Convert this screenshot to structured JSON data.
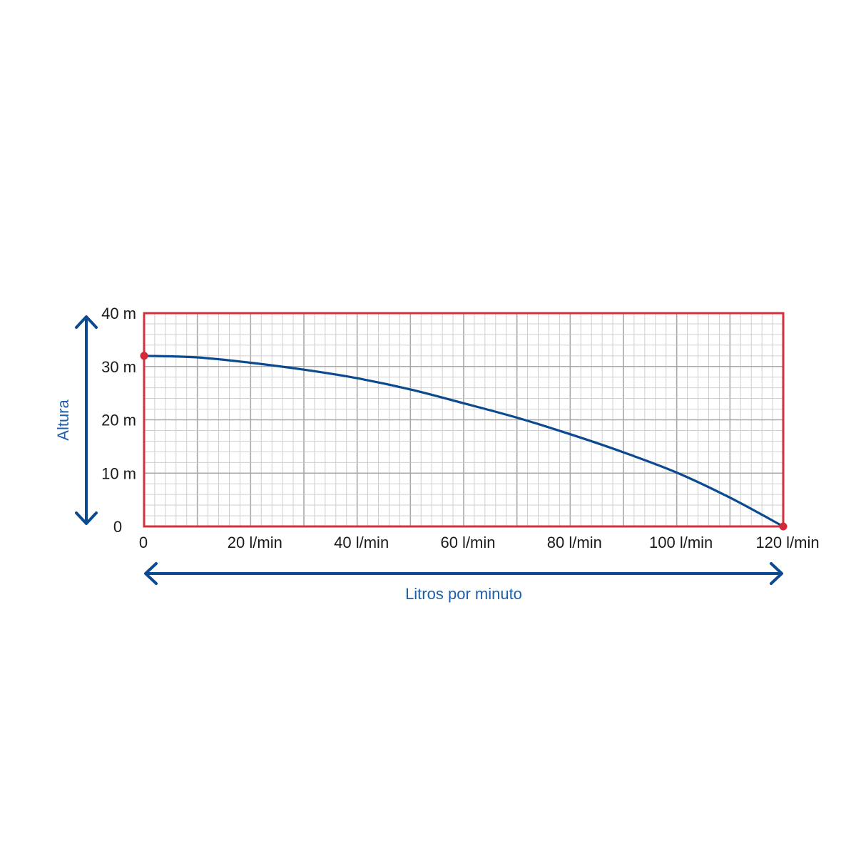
{
  "chart_data": {
    "type": "line",
    "x": [
      0,
      10,
      20,
      30,
      40,
      50,
      60,
      70,
      80,
      90,
      100,
      110,
      120
    ],
    "series": [
      {
        "values": [
          32,
          31.7,
          30.7,
          29.4,
          27.8,
          25.7,
          23.1,
          20.4,
          17.3,
          13.9,
          10.1,
          5.4,
          0
        ]
      }
    ],
    "endpoints": [
      [
        0,
        32
      ],
      [
        120,
        0
      ]
    ],
    "xticks": [
      "0",
      "20 l/min",
      "40 l/min",
      "60 l/min",
      "80 l/min",
      "100 l/min",
      "120 l/min"
    ],
    "xtick_values": [
      0,
      20,
      40,
      60,
      80,
      100,
      120
    ],
    "yticks": [
      "0",
      "10 m",
      "20 m",
      "30 m",
      "40 m"
    ],
    "ytick_values": [
      0,
      10,
      20,
      30,
      40
    ],
    "xlabel": "Litros por minuto",
    "ylabel": "Altura",
    "xlim": [
      0,
      120
    ],
    "ylim": [
      0,
      40
    ],
    "grid": true,
    "colors": {
      "frame": "#d0323c",
      "curve": "#0b4a8f",
      "arrows": "#0b4a8f",
      "label": "#1f5ea8",
      "grid_major": "#a7a7a7",
      "grid_minor": "#c9c9c9",
      "point": "#d42a35"
    }
  }
}
